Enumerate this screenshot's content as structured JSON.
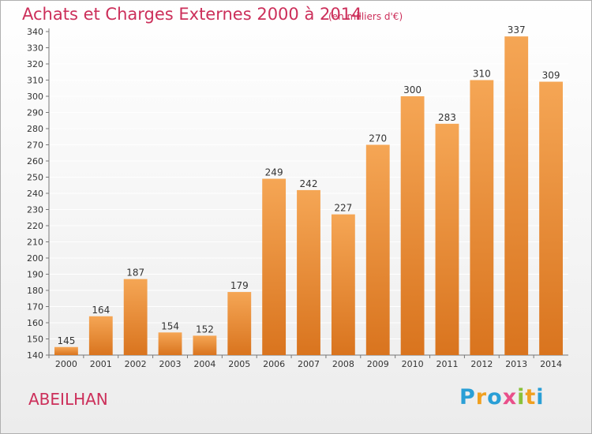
{
  "title": "Achats et Charges Externes 2000 à 2014",
  "subtitle": "(en milliers d'€)",
  "commune": "ABEILHAN",
  "logo": {
    "letters": [
      "P",
      "r",
      "o",
      "x",
      "i",
      "t",
      "i"
    ],
    "colors": [
      "#2a9fd6",
      "#f0a020",
      "#2a9fd6",
      "#e94f8a",
      "#8ac13a",
      "#f0a020",
      "#2a9fd6"
    ]
  },
  "colors": {
    "title": "#cc2f5a",
    "bar_top": "#f5a655",
    "bar_bottom": "#d9741e",
    "grid": "#ffffff"
  },
  "chart_data": {
    "type": "bar",
    "categories": [
      "2000",
      "2001",
      "2002",
      "2003",
      "2004",
      "2005",
      "2006",
      "2007",
      "2008",
      "2009",
      "2010",
      "2011",
      "2012",
      "2013",
      "2014"
    ],
    "values": [
      145,
      164,
      187,
      154,
      152,
      179,
      249,
      242,
      227,
      270,
      300,
      283,
      310,
      337,
      309
    ],
    "title": "Achats et Charges Externes 2000 à 2014",
    "xlabel": "",
    "ylabel": "",
    "ylim": [
      140,
      340
    ],
    "yticks": [
      140,
      150,
      160,
      170,
      180,
      190,
      200,
      210,
      220,
      230,
      240,
      250,
      260,
      270,
      280,
      290,
      300,
      310,
      320,
      330,
      340
    ],
    "grid": true,
    "data_labels": true
  }
}
